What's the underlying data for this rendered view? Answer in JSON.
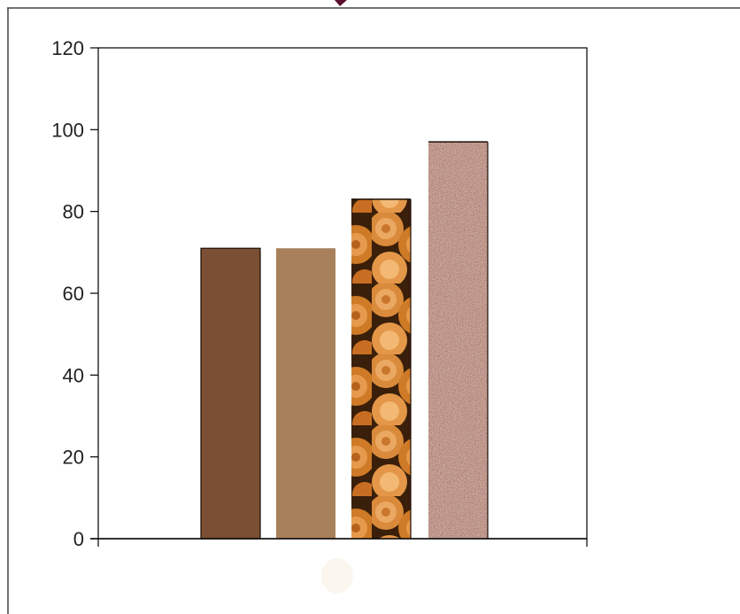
{
  "chart_data": {
    "type": "bar",
    "title": "",
    "xlabel": "",
    "ylabel": "",
    "ylim": [
      0,
      120
    ],
    "yticks": [
      0,
      20,
      40,
      60,
      80,
      100,
      120
    ],
    "grid": false,
    "legend": "none",
    "categories": [
      "",
      "",
      "",
      ""
    ],
    "values": [
      71,
      71,
      83,
      97
    ],
    "bar_fills": [
      "solid-dark-brown",
      "solid-light-brown",
      "wood-logs-texture",
      "speckled-granite-texture"
    ],
    "colors": {
      "bar_1": "#7a4f33",
      "bar_2": "#a8805c",
      "bar_3_base": "#b8661e",
      "bar_4_base": "#9c6a58",
      "axis": "#000000",
      "frame": "#444444"
    }
  }
}
